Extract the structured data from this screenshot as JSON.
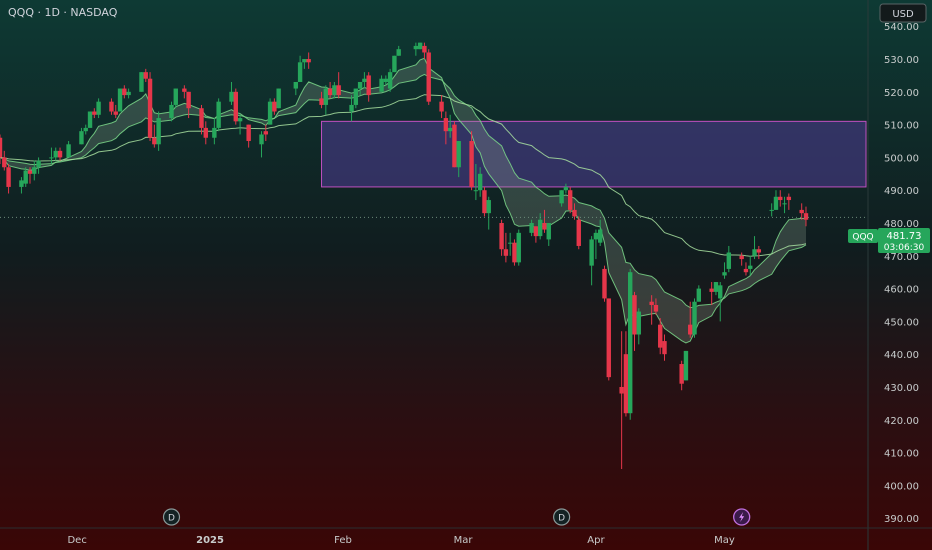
{
  "header": {
    "symbol_line": "QQQ · 1D · NASDAQ",
    "currency": "USD"
  },
  "price_tag": {
    "symbol": "QQQ",
    "price": "481.73",
    "countdown": "03:06:30"
  },
  "event_markers": [
    {
      "label": "D",
      "kind": "dividend",
      "x_date": "2024-12-23"
    },
    {
      "label": "D",
      "kind": "dividend",
      "x_date": "2025-03-24"
    },
    {
      "label": "earnings",
      "kind": "earnings",
      "x_date": "2025-05-05",
      "icon": "lightning-icon"
    }
  ],
  "colors": {
    "up": "#26a65b",
    "down": "#e5364a",
    "zone_stroke": "#c050c0",
    "zone_fill": "#4a3a8a",
    "ema_fast": "#7bd88a",
    "ema_slow": "#a8e0a0",
    "accent": "#26a65b"
  },
  "chart_data": {
    "type": "candlestick",
    "title": "",
    "y_axis": {
      "ticks": [
        390,
        400,
        410,
        420,
        430,
        440,
        450,
        460,
        470,
        480,
        490,
        500,
        510,
        520,
        530,
        540
      ],
      "tick_labels": [
        "390.00",
        "400.00",
        "410.00",
        "420.00",
        "430.00",
        "440.00",
        "450.00",
        "460.00",
        "470.00",
        "480.00",
        "490.00",
        "500.00",
        "510.00",
        "520.00",
        "530.00",
        "540.00"
      ],
      "range": [
        387,
        548
      ]
    },
    "x_axis": {
      "labels": [
        {
          "text": "Dec",
          "date": "2024-12-01"
        },
        {
          "text": "2025",
          "date": "2025-01-01",
          "bold": true
        },
        {
          "text": "Feb",
          "date": "2025-02-01"
        },
        {
          "text": "Mar",
          "date": "2025-03-01"
        },
        {
          "text": "Apr",
          "date": "2025-04-01"
        },
        {
          "text": "May",
          "date": "2025-05-01"
        }
      ],
      "range": [
        "2024-11-13",
        "2025-06-03"
      ]
    },
    "zone": {
      "x_start": "2025-01-27",
      "x_end": "2025-06-03",
      "y_low": 491,
      "y_high": 511
    },
    "current_price_line": 481.73,
    "candles": [
      [
        "2024-11-13",
        506,
        507,
        498,
        500
      ],
      [
        "2024-11-14",
        500,
        502,
        496,
        497
      ],
      [
        "2024-11-15",
        497,
        498,
        489,
        491
      ],
      [
        "2024-11-18",
        491,
        494,
        489,
        493
      ],
      [
        "2024-11-19",
        492,
        497,
        491,
        496
      ],
      [
        "2024-11-20",
        496,
        497,
        492,
        495
      ],
      [
        "2024-11-21",
        495,
        499,
        493,
        497
      ],
      [
        "2024-11-22",
        497,
        500,
        495,
        499
      ],
      [
        "2024-11-25",
        500,
        503,
        498,
        500
      ],
      [
        "2024-11-26",
        500,
        503,
        499,
        502
      ],
      [
        "2024-11-27",
        502,
        503,
        499,
        500
      ],
      [
        "2024-11-29",
        500,
        505,
        500,
        504
      ],
      [
        "2024-12-02",
        504,
        509,
        504,
        508
      ],
      [
        "2024-12-03",
        508,
        510,
        507,
        509
      ],
      [
        "2024-12-04",
        509,
        514,
        509,
        514
      ],
      [
        "2024-12-05",
        514,
        515,
        512,
        513
      ],
      [
        "2024-12-06",
        513,
        518,
        512,
        517
      ],
      [
        "2024-12-09",
        517,
        518,
        513,
        514
      ],
      [
        "2024-12-10",
        514,
        516,
        512,
        513
      ],
      [
        "2024-12-11",
        514,
        521,
        514,
        521
      ],
      [
        "2024-12-12",
        521,
        522,
        518,
        519
      ],
      [
        "2024-12-13",
        519,
        521,
        518,
        520
      ],
      [
        "2024-12-16",
        520,
        526,
        520,
        526
      ],
      [
        "2024-12-17",
        526,
        527,
        523,
        524
      ],
      [
        "2024-12-18",
        524,
        526,
        505,
        506
      ],
      [
        "2024-12-19",
        506,
        510,
        503,
        504
      ],
      [
        "2024-12-20",
        504,
        514,
        502,
        512
      ],
      [
        "2024-12-23",
        512,
        517,
        511,
        516
      ],
      [
        "2024-12-24",
        516,
        521,
        515,
        521
      ],
      [
        "2024-12-26",
        521,
        522,
        518,
        520
      ],
      [
        "2024-12-27",
        520,
        520,
        512,
        515
      ],
      [
        "2024-12-30",
        515,
        516,
        507,
        509
      ],
      [
        "2024-12-31",
        509,
        511,
        504,
        506
      ],
      [
        "2025-01-02",
        506,
        512,
        504,
        509
      ],
      [
        "2025-01-03",
        509,
        518,
        508,
        517
      ],
      [
        "2025-01-06",
        517,
        523,
        516,
        520
      ],
      [
        "2025-01-07",
        520,
        521,
        510,
        511
      ],
      [
        "2025-01-08",
        511,
        513,
        507,
        512
      ],
      [
        "2025-01-10",
        510,
        510,
        503,
        505
      ],
      [
        "2025-01-13",
        504,
        508,
        500,
        507
      ],
      [
        "2025-01-14",
        508,
        510,
        505,
        507
      ],
      [
        "2025-01-15",
        510,
        518,
        510,
        517
      ],
      [
        "2025-01-16",
        517,
        518,
        513,
        514
      ],
      [
        "2025-01-17",
        515,
        521,
        515,
        521
      ],
      [
        "2025-01-21",
        521,
        523,
        519,
        523
      ],
      [
        "2025-01-22",
        523,
        531,
        523,
        529
      ],
      [
        "2025-01-23",
        529,
        530,
        527,
        530
      ],
      [
        "2025-01-24",
        530,
        532,
        527,
        529
      ],
      [
        "2025-01-27",
        518,
        520,
        515,
        516
      ],
      [
        "2025-01-28",
        516,
        522,
        513,
        521
      ],
      [
        "2025-01-29",
        521,
        523,
        518,
        519
      ],
      [
        "2025-01-30",
        519,
        523,
        518,
        522
      ],
      [
        "2025-01-31",
        522,
        526,
        518,
        519
      ],
      [
        "2025-02-03",
        514,
        519,
        511,
        516
      ],
      [
        "2025-02-04",
        516,
        521,
        515,
        521
      ],
      [
        "2025-02-05",
        521,
        523,
        519,
        523
      ],
      [
        "2025-02-06",
        523,
        526,
        521,
        524
      ],
      [
        "2025-02-07",
        525,
        526,
        517,
        519
      ],
      [
        "2025-02-10",
        520,
        525,
        520,
        524
      ],
      [
        "2025-02-11",
        523,
        525,
        522,
        524
      ],
      [
        "2025-02-12",
        521,
        527,
        520,
        526
      ],
      [
        "2025-02-13",
        526,
        531,
        526,
        531
      ],
      [
        "2025-02-14",
        531,
        534,
        531,
        533
      ],
      [
        "2025-02-18",
        533,
        535,
        531,
        534
      ],
      [
        "2025-02-19",
        533,
        535,
        533,
        535
      ],
      [
        "2025-02-20",
        534,
        535,
        530,
        532
      ],
      [
        "2025-02-21",
        532,
        533,
        516,
        517
      ],
      [
        "2025-02-24",
        517,
        519,
        512,
        514
      ],
      [
        "2025-02-25",
        512,
        514,
        504,
        508
      ],
      [
        "2025-02-26",
        508,
        513,
        506,
        509
      ],
      [
        "2025-02-27",
        510,
        511,
        497,
        497
      ],
      [
        "2025-02-28",
        497,
        505,
        494,
        505
      ],
      [
        "2025-03-03",
        505,
        508,
        490,
        491
      ],
      [
        "2025-03-04",
        490,
        498,
        487,
        490
      ],
      [
        "2025-03-05",
        490,
        497,
        488,
        495
      ],
      [
        "2025-03-06",
        490,
        491,
        482,
        483
      ],
      [
        "2025-03-07",
        483,
        488,
        478,
        487
      ],
      [
        "2025-03-10",
        480,
        481,
        470,
        472
      ],
      [
        "2025-03-11",
        472,
        477,
        468,
        470
      ],
      [
        "2025-03-12",
        474,
        477,
        470,
        474
      ],
      [
        "2025-03-13",
        474,
        475,
        467,
        468
      ],
      [
        "2025-03-14",
        468,
        478,
        467,
        477
      ],
      [
        "2025-03-17",
        477,
        481,
        476,
        480
      ],
      [
        "2025-03-18",
        479,
        479,
        474,
        476
      ],
      [
        "2025-03-19",
        476,
        483,
        475,
        481
      ],
      [
        "2025-03-20",
        480,
        484,
        477,
        478
      ],
      [
        "2025-03-21",
        475,
        480,
        473,
        480
      ],
      [
        "2025-03-24",
        486,
        490,
        485,
        490
      ],
      [
        "2025-03-25",
        490,
        492,
        489,
        491
      ],
      [
        "2025-03-26",
        490,
        491,
        483,
        484
      ],
      [
        "2025-03-27",
        484,
        486,
        481,
        482
      ],
      [
        "2025-03-28",
        481,
        482,
        472,
        473
      ],
      [
        "2025-03-31",
        467,
        476,
        461,
        475
      ],
      [
        "2025-04-01",
        475,
        478,
        469,
        477
      ],
      [
        "2025-04-02",
        474,
        481,
        473,
        478
      ],
      [
        "2025-04-03",
        466,
        467,
        456,
        457
      ],
      [
        "2025-04-04",
        457,
        457,
        432,
        433
      ],
      [
        "2025-04-07",
        430,
        447,
        405,
        428
      ],
      [
        "2025-04-08",
        440,
        447,
        421,
        422
      ],
      [
        "2025-04-09",
        422,
        466,
        420,
        465
      ],
      [
        "2025-04-10",
        458,
        459,
        441,
        446
      ],
      [
        "2025-04-11",
        446,
        454,
        443,
        453
      ],
      [
        "2025-04-14",
        456,
        458,
        449,
        455
      ],
      [
        "2025-04-15",
        455,
        457,
        452,
        453
      ],
      [
        "2025-04-16",
        449,
        451,
        440,
        442
      ],
      [
        "2025-04-17",
        444,
        446,
        438,
        440
      ],
      [
        "2025-04-21",
        437,
        438,
        429,
        431
      ],
      [
        "2025-04-22",
        432,
        441,
        432,
        441
      ],
      [
        "2025-04-23",
        449,
        456,
        445,
        446
      ],
      [
        "2025-04-24",
        446,
        457,
        445,
        456
      ],
      [
        "2025-04-25",
        456,
        461,
        456,
        460
      ],
      [
        "2025-04-28",
        460,
        462,
        455,
        459
      ],
      [
        "2025-04-29",
        459,
        462,
        458,
        462
      ],
      [
        "2025-04-30",
        457,
        462,
        450,
        461
      ],
      [
        "2025-05-01",
        464,
        468,
        463,
        465
      ],
      [
        "2025-05-02",
        466,
        473,
        465,
        471
      ],
      [
        "2025-05-05",
        470,
        471,
        467,
        469
      ],
      [
        "2025-05-06",
        466,
        468,
        464,
        465
      ],
      [
        "2025-05-07",
        466,
        470,
        464,
        467
      ],
      [
        "2025-05-08",
        470,
        476,
        469,
        472
      ],
      [
        "2025-05-09",
        472,
        473,
        469,
        471
      ],
      [
        "2025-05-12",
        484,
        486,
        482,
        484
      ],
      [
        "2025-05-13",
        484,
        490,
        484,
        488
      ],
      [
        "2025-05-14",
        488,
        490,
        485,
        487
      ],
      [
        "2025-05-15",
        486,
        488,
        483,
        486
      ],
      [
        "2025-05-16",
        488,
        489,
        484,
        487
      ],
      [
        "2025-05-19",
        484,
        486,
        481,
        483
      ],
      [
        "2025-05-20",
        483,
        485,
        479,
        481
      ]
    ]
  }
}
